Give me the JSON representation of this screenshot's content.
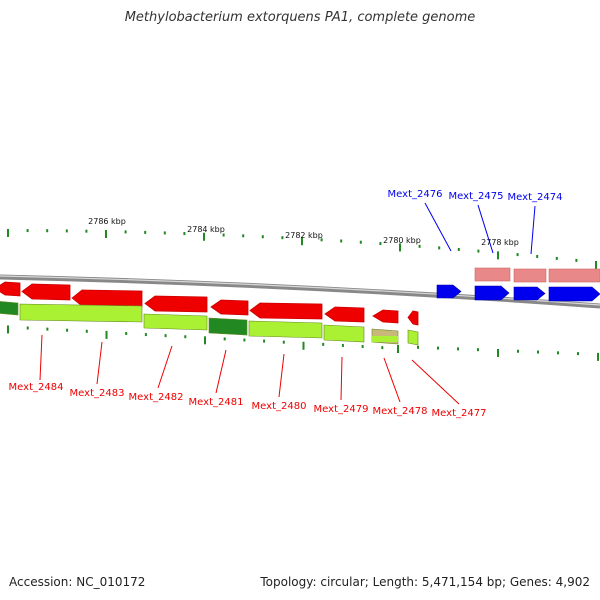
{
  "title": "Methylobacterium extorquens PA1, complete genome",
  "footer": {
    "accession": "Accession: NC_010172",
    "summary": "Topology: circular; Length: 5,471,154 bp; Genes: 4,902"
  },
  "colors": {
    "forward": "#0000ee",
    "reverse": "#ee0000",
    "forward_light": "#e88888",
    "cds": "#aaf033",
    "cds_dark": "#228822",
    "tick": "#228822",
    "backbone": "#888888"
  },
  "scale": {
    "unit": "kbp",
    "labels": [
      {
        "kbp": 2786,
        "text": "2786 kbp"
      },
      {
        "kbp": 2784,
        "text": "2784 kbp"
      },
      {
        "kbp": 2782,
        "text": "2782 kbp"
      },
      {
        "kbp": 2780,
        "text": "2780 kbp"
      },
      {
        "kbp": 2778,
        "text": "2778 kbp"
      }
    ]
  },
  "genes": [
    {
      "id": "Mext_2484",
      "label": "Mext_2484",
      "strand": "reverse"
    },
    {
      "id": "Mext_2483",
      "label": "Mext_2483",
      "strand": "reverse"
    },
    {
      "id": "Mext_2482",
      "label": "Mext_2482",
      "strand": "reverse"
    },
    {
      "id": "Mext_2481",
      "label": "Mext_2481",
      "strand": "reverse"
    },
    {
      "id": "Mext_2480",
      "label": "Mext_2480",
      "strand": "reverse"
    },
    {
      "id": "Mext_2479",
      "label": "Mext_2479",
      "strand": "reverse"
    },
    {
      "id": "Mext_2478",
      "label": "Mext_2478",
      "strand": "reverse"
    },
    {
      "id": "Mext_2477",
      "label": "Mext_2477",
      "strand": "reverse"
    },
    {
      "id": "Mext_2476",
      "label": "Mext_2476",
      "strand": "forward"
    },
    {
      "id": "Mext_2475",
      "label": "Mext_2475",
      "strand": "forward"
    },
    {
      "id": "Mext_2474",
      "label": "Mext_2474",
      "strand": "forward"
    }
  ]
}
